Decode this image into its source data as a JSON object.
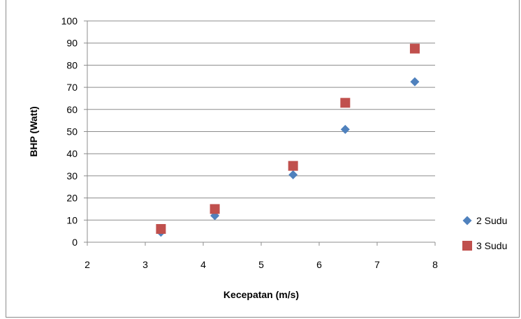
{
  "chart_data": {
    "type": "scatter",
    "title": "",
    "xlabel": "Kecepatan (m/s)",
    "ylabel": "BHP (Watt)",
    "xlim": [
      2,
      8
    ],
    "ylim": [
      0,
      100
    ],
    "xticks": [
      "2",
      "3",
      "4",
      "5",
      "6",
      "7",
      "8"
    ],
    "yticks": [
      "0",
      "10",
      "20",
      "30",
      "40",
      "50",
      "60",
      "70",
      "80",
      "90",
      "100"
    ],
    "grid": "horizontal major gridlines",
    "legend_position": "right",
    "series": [
      {
        "name": "2 Sudu",
        "marker": "diamond",
        "color": "#4f81bd",
        "x": [
          3.27,
          4.2,
          5.55,
          6.45,
          7.65
        ],
        "y": [
          4.5,
          12,
          30.5,
          51,
          72.5
        ]
      },
      {
        "name": "3 Sudu",
        "marker": "square",
        "color": "#c0504d",
        "x": [
          3.27,
          4.2,
          5.55,
          6.45,
          7.65
        ],
        "y": [
          6,
          15,
          34.5,
          63,
          87.5
        ]
      }
    ]
  }
}
